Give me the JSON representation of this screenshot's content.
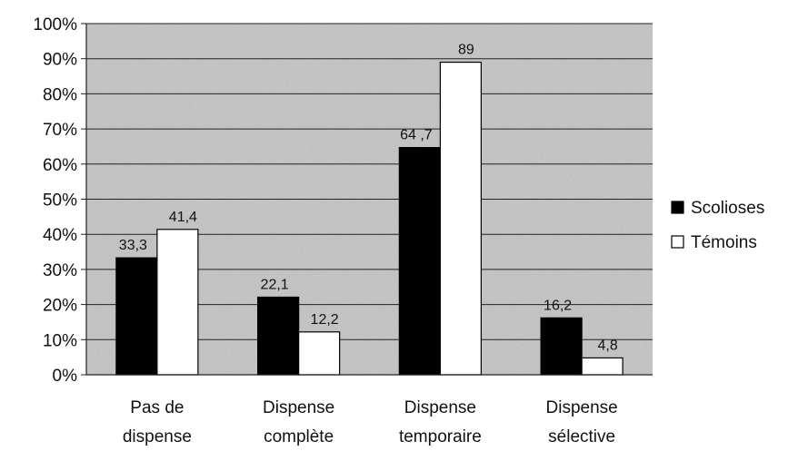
{
  "chart_data": {
    "type": "bar",
    "categories": [
      [
        "Pas de",
        "dispense"
      ],
      [
        "Dispense",
        "complète"
      ],
      [
        "Dispense",
        "temporaire"
      ],
      [
        "Dispense",
        "sélective"
      ]
    ],
    "series": [
      {
        "name": "Scolioses",
        "values": [
          33.3,
          22.1,
          64.7,
          16.2
        ],
        "labels": [
          "33,3",
          "22,1",
          "64 ,7",
          "16,2"
        ],
        "color": "#000000"
      },
      {
        "name": "Témoins",
        "values": [
          41.4,
          12.2,
          89,
          4.8
        ],
        "labels": [
          "41,4",
          "12,2",
          "89",
          "4,8"
        ],
        "color": "#ffffff"
      }
    ],
    "yticks": [
      "0%",
      "10%",
      "20%",
      "30%",
      "40%",
      "50%",
      "60%",
      "70%",
      "80%",
      "90%",
      "100%"
    ],
    "ylim": [
      0,
      100
    ],
    "grid": true,
    "legend_position": "right",
    "plot_background": "#c4c4c4",
    "title": "",
    "xlabel": "",
    "ylabel": ""
  }
}
